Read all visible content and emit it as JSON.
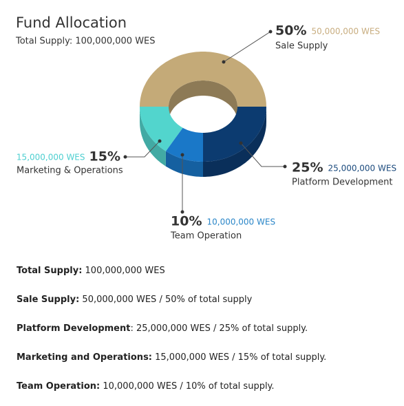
{
  "chart_data": {
    "type": "donut3d",
    "title": "Fund Allocation",
    "subtitle": "Total Supply: 100,000,000 WES",
    "categories": [
      "Sale Supply",
      "Platform Development",
      "Team Operation",
      "Marketing & Operations"
    ],
    "values": [
      50,
      25,
      10,
      15
    ],
    "value_labels": [
      "50%",
      "25%",
      "10%",
      "15%"
    ],
    "amount_labels": [
      "50,000,000 WES",
      "25,000,000 WES",
      "10,000,000 WES",
      "15,000,000 WES"
    ],
    "colors": [
      "#c4aa78",
      "#0c3b70",
      "#1a78c8",
      "#52d5cd"
    ],
    "label_colors": [
      "#c8ad7f",
      "#1b4a7d",
      "#2a86c8",
      "#4dcfd0"
    ]
  },
  "notes": [
    {
      "label": "Total Supply:",
      "text": " 100,000,000 WES"
    },
    {
      "label": "Sale Supply:",
      "text": " 50,000,000 WES / 50% of total supply"
    },
    {
      "label": "Platform Development",
      "text": ": 25,000,000 WES / 25% of total supply."
    },
    {
      "label": "Marketing and Operations:",
      "text": " 15,000,000 WES / 15% of total supply."
    },
    {
      "label": "Team Operation:",
      "text": " 10,000,000 WES / 10% of total supply."
    }
  ]
}
